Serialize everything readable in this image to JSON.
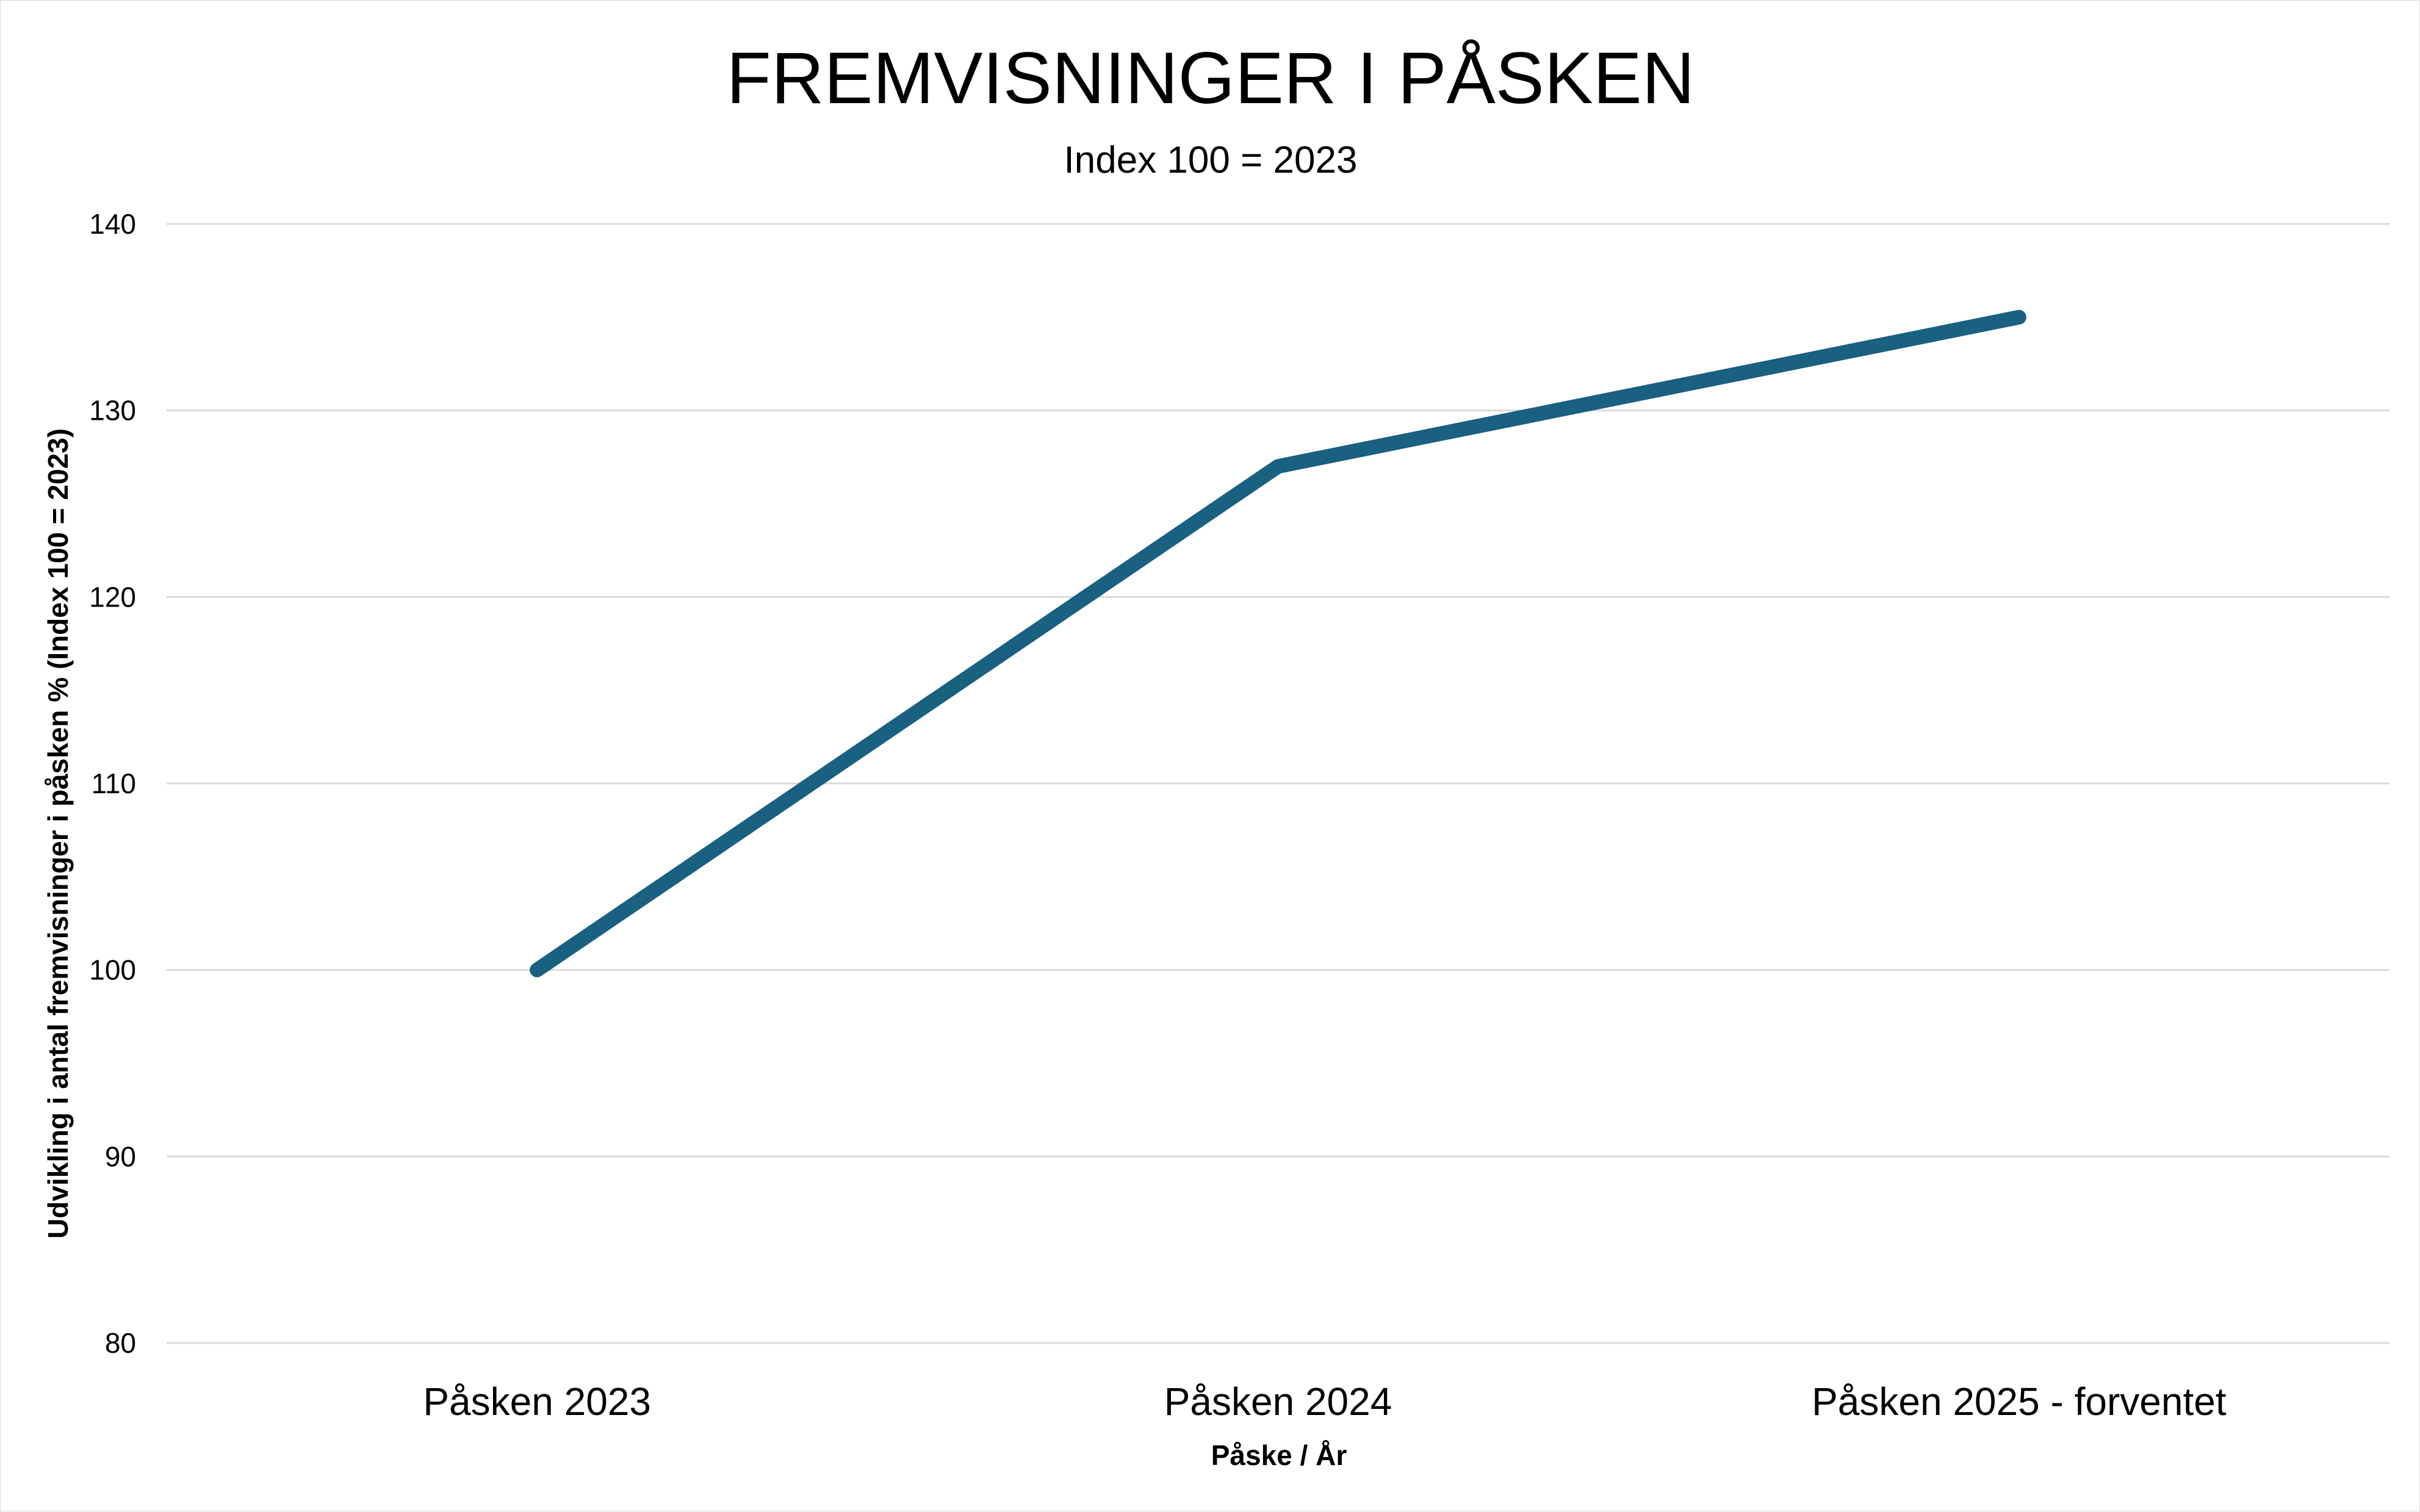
{
  "chart_data": {
    "type": "line",
    "title": "FREMVISNINGER I PÅSKEN",
    "subtitle": "Index 100 = 2023",
    "xlabel": "Påske / År",
    "ylabel": "Udvikling i antal fremvisninger i påsken % (Index 100 = 2023)",
    "categories": [
      "Påsken 2023",
      "Påsken 2024",
      "Påsken 2025 - forventet"
    ],
    "series": [
      {
        "values": [
          100,
          127,
          135
        ]
      }
    ],
    "ylim": [
      80,
      140
    ],
    "yticks": [
      80,
      90,
      100,
      110,
      120,
      130,
      140
    ],
    "grid": true,
    "legend": "none",
    "colors": {
      "line": "#1a6080",
      "grid": "#d9d9d9",
      "text": "#000000"
    }
  }
}
